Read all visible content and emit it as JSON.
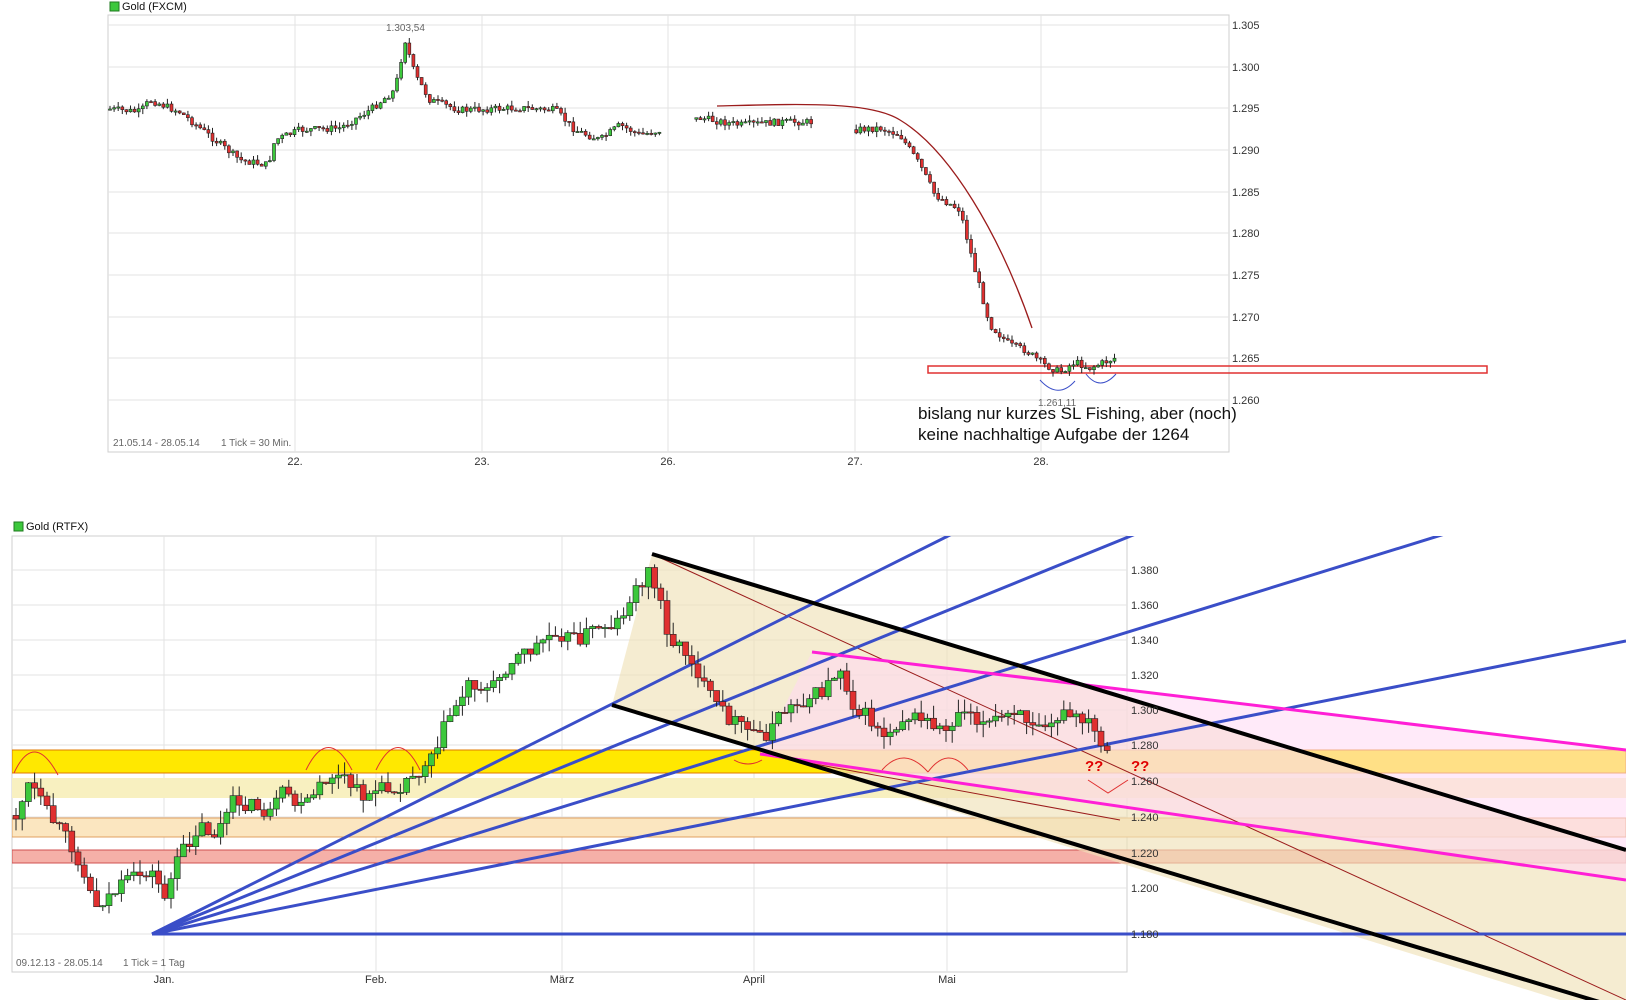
{
  "chart_data": [
    {
      "type": "candlestick",
      "title": "Gold (FXCM)",
      "footer_range": "21.05.14 - 28.05.14",
      "footer_interval": "1 Tick = 30 Min.",
      "x_labels": [
        "22.",
        "23.",
        "26.",
        "27.",
        "28."
      ],
      "y_ticks": [
        "1.305",
        "1.300",
        "1.295",
        "1.290",
        "1.285",
        "1.280",
        "1.275",
        "1.270",
        "1.265",
        "1.260"
      ],
      "ylim": [
        1.259,
        1.306
      ],
      "grid": true,
      "high_label": "1.303,54",
      "low_label": "1.261,11",
      "annotation_line1": "bislang nur kurzes SL Fishing, aber (noch)",
      "annotation_line2": "keine nachhaltige Aufgabe der 1264",
      "support_level": 1.264,
      "colors": {
        "up": "#3cc83c",
        "down": "#e03030",
        "annotation": "#9b1c1c",
        "box": "#e03030"
      }
    },
    {
      "type": "candlestick",
      "title": "Gold (RTFX)",
      "footer_range": "09.12.13 - 28.05.14",
      "footer_interval": "1 Tick = 1 Tag",
      "x_labels": [
        "Jan.",
        "Feb.",
        "März",
        "April",
        "Mai"
      ],
      "y_ticks": [
        "1.380",
        "1.360",
        "1.340",
        "1.320",
        "1.300",
        "1.280",
        "1.260",
        "1.240",
        "1.220",
        "1.200",
        "1.180"
      ],
      "ylim": [
        1.167,
        1.399
      ],
      "grid": true,
      "question_marks": [
        "??",
        "??"
      ],
      "yellow_zone": [
        1.265,
        1.278
      ],
      "light_zone": [
        1.231,
        1.241
      ],
      "red_zone": [
        1.216,
        1.224
      ],
      "colors": {
        "up": "#3cc83c",
        "down": "#e03030",
        "fan": "#3a4ec8",
        "channel": "#000000",
        "magenta": "#ff1fd6",
        "zone_yellow": "#ffe800",
        "zone_red": "#f5b0a8"
      }
    }
  ]
}
